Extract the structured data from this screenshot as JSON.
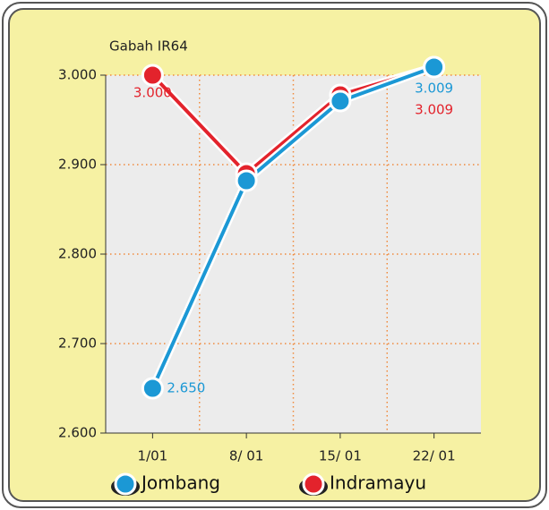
{
  "chart_data": {
    "type": "line",
    "title": "Gabah IR64",
    "categories": [
      "1/01",
      "8/ 01",
      "15/ 01",
      "22/ 01"
    ],
    "series": [
      {
        "name": "Jombang",
        "color": "#1b98d5",
        "values": [
          2650,
          2882,
          2971,
          3009
        ],
        "value_labels": [
          "2.650",
          null,
          null,
          "3.009"
        ]
      },
      {
        "name": "Indramayu",
        "color": "#e3232c",
        "values": [
          3000,
          2890,
          2978,
          3009
        ],
        "value_labels": [
          "3.000",
          null,
          null,
          "3.009"
        ]
      }
    ],
    "ylim": [
      2600,
      3000
    ],
    "yticks": [
      {
        "value": 2600,
        "label": "2.600"
      },
      {
        "value": 2700,
        "label": "2.700"
      },
      {
        "value": 2800,
        "label": "2.800"
      },
      {
        "value": 2900,
        "label": "2.900"
      },
      {
        "value": 3000,
        "label": "3.000"
      }
    ],
    "grid": true,
    "legend": "bottom"
  }
}
